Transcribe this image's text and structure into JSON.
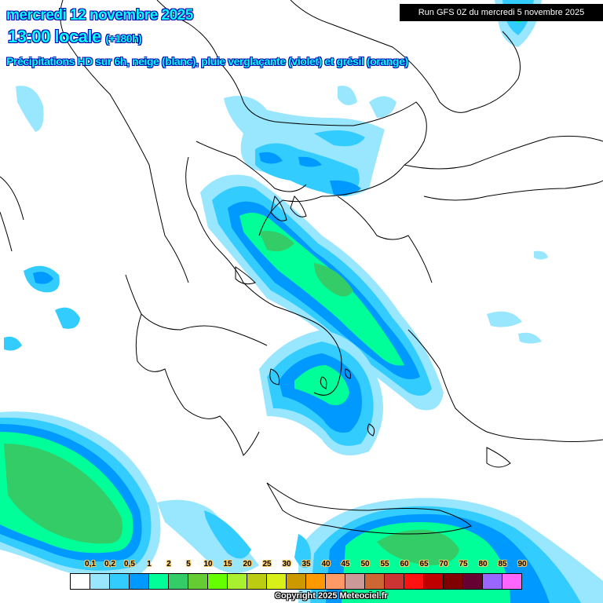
{
  "header": {
    "date": "mercredi 12 novembre 2025",
    "time": "13:00 locale",
    "lead": "(+180h)",
    "subtitle": "Précipitations HD sur 6h, neige (blanc), pluie verglaçante (violet) et grésil (orange)",
    "run": "Run GFS 0Z du mercredi 5 novembre 2025"
  },
  "legend": {
    "labels": [
      "0,1",
      "0,2",
      "0,5",
      "1",
      "2",
      "5",
      "10",
      "15",
      "20",
      "25",
      "30",
      "35",
      "40",
      "45",
      "50",
      "55",
      "60",
      "65",
      "70",
      "75",
      "80",
      "85",
      "90"
    ],
    "colors": [
      "#ffffff",
      "#99e6ff",
      "#33ccff",
      "#0099ff",
      "#00ff99",
      "#33cc66",
      "#66cc33",
      "#66ff00",
      "#a8f030",
      "#bccc10",
      "#d8f018",
      "#cc9900",
      "#ff9900",
      "#ff9966",
      "#cc9999",
      "#cc6633",
      "#cc3333",
      "#ff1111",
      "#c00000",
      "#800000",
      "#660033",
      "#9966ff",
      "#ff66ff"
    ]
  },
  "copyright": "Copyright 2025 Meteociel.fr"
}
